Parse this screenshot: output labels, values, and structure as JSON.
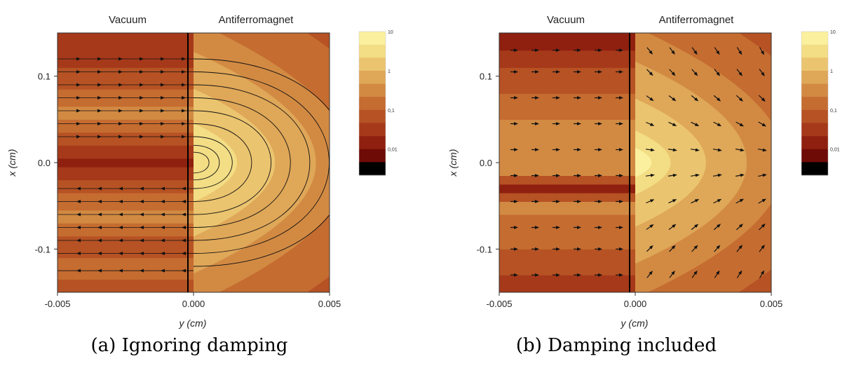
{
  "chart_data": [
    {
      "type": "heatmap",
      "panel": "a",
      "caption": "(a) Ignoring damping",
      "region_labels": [
        "Vacuum",
        "Antiferromagnet"
      ],
      "xlabel": "y (cm)",
      "ylabel": "x (cm)",
      "x_ticks": [
        "-0.005",
        "0.000",
        "0.005"
      ],
      "y_ticks": [
        "0.1",
        "0.0",
        "-0.1"
      ],
      "xlim": [
        -0.005,
        0.005
      ],
      "ylim": [
        -0.15,
        0.15
      ],
      "colorbar": {
        "labels": [
          "10",
          "1",
          "0,1",
          "0,01"
        ],
        "scale": "log",
        "range": [
          0.01,
          10
        ]
      },
      "field": "streamlines"
    },
    {
      "type": "heatmap",
      "panel": "b",
      "caption": "(b) Damping included",
      "region_labels": [
        "Vacuum",
        "Antiferromagnet"
      ],
      "xlabel": "y (cm)",
      "ylabel": "x (cm)",
      "x_ticks": [
        "-0.005",
        "0.000",
        "0.005"
      ],
      "y_ticks": [
        "0.1",
        "0.0",
        "-0.1"
      ],
      "xlim": [
        -0.005,
        0.005
      ],
      "ylim": [
        -0.15,
        0.15
      ],
      "colorbar": {
        "labels": [
          "10",
          "1",
          "0,1",
          "0,01"
        ],
        "scale": "log",
        "range": [
          0.01,
          10
        ]
      },
      "field": "arrows"
    }
  ],
  "colors": {
    "levels": [
      "#000000",
      "#6e0b07",
      "#8f200f",
      "#a6391a",
      "#b65224",
      "#c56c31",
      "#d28a43",
      "#dfa758",
      "#ebc46f",
      "#f3dd85",
      "#fbf09e"
    ]
  }
}
